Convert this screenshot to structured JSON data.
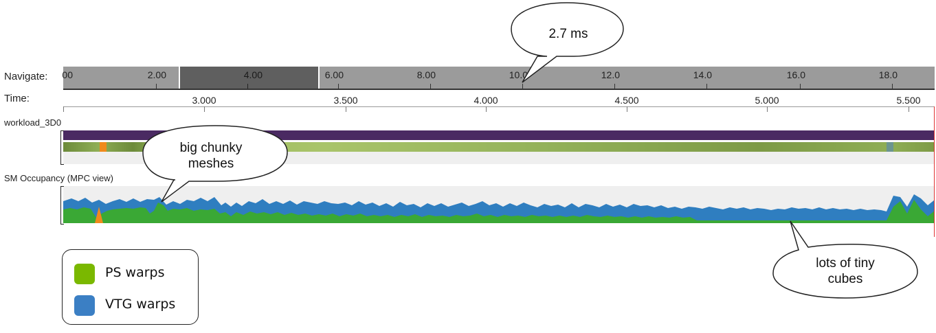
{
  "navigate": {
    "label": "Navigate:",
    "ticks": [
      "00",
      "2.00",
      "4.00",
      "6.00",
      "8.00",
      "10.0",
      "12.0",
      "14.0",
      "16.0",
      "18.0"
    ]
  },
  "time": {
    "label": "Time:",
    "ticks": [
      "3.000",
      "3.500",
      "4.000",
      "4.500",
      "5.000",
      "5.500"
    ]
  },
  "workload": {
    "label": "workload_3D0"
  },
  "occupancy": {
    "label": "SM Occupancy (MPC view)"
  },
  "callouts": {
    "duration": "2.7 ms",
    "left_line1": "big chunky",
    "left_line2": "meshes",
    "right_line1": "lots of tiny",
    "right_line2": "cubes"
  },
  "legend": {
    "items": [
      {
        "label": "PS warps",
        "color": "#7ab800"
      },
      {
        "label": "VTG warps",
        "color": "#3b7fc4"
      }
    ]
  },
  "colors": {
    "ps_warps": "#3aa835",
    "vtg_warps": "#2f7ec0",
    "orange_spike": "#f08a1c",
    "cursor": "#e03030"
  }
}
